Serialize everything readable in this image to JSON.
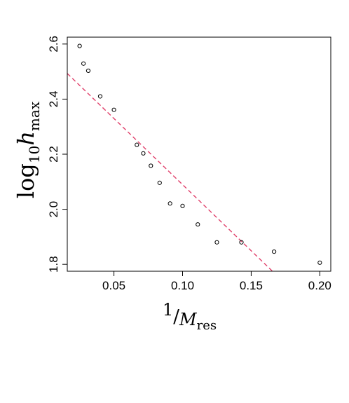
{
  "chart_data": {
    "type": "scatter",
    "xlabel": {
      "numerator": "1",
      "main": "M",
      "subscript": "res"
    },
    "ylabel": {
      "main": "log",
      "sub1": "10",
      "var": "h",
      "sub2": "max"
    },
    "xlim": [
      0.016,
      0.208
    ],
    "ylim": [
      1.775,
      2.625
    ],
    "x_ticks": [
      0.05,
      0.1,
      0.15,
      0.2
    ],
    "x_tick_labels": [
      "0.05",
      "0.10",
      "0.15",
      "0.20"
    ],
    "y_ticks": [
      1.8,
      2.0,
      2.2,
      2.4,
      2.6
    ],
    "y_tick_labels": [
      "1.8",
      "2.0",
      "2.2",
      "2.4",
      "2.6"
    ],
    "points": [
      {
        "x": 0.025,
        "y": 2.593
      },
      {
        "x": 0.0278,
        "y": 2.529
      },
      {
        "x": 0.0313,
        "y": 2.503
      },
      {
        "x": 0.04,
        "y": 2.41
      },
      {
        "x": 0.05,
        "y": 2.361
      },
      {
        "x": 0.0667,
        "y": 2.234
      },
      {
        "x": 0.0714,
        "y": 2.203
      },
      {
        "x": 0.0769,
        "y": 2.158
      },
      {
        "x": 0.0833,
        "y": 2.096
      },
      {
        "x": 0.0909,
        "y": 2.021
      },
      {
        "x": 0.1,
        "y": 2.012
      },
      {
        "x": 0.1111,
        "y": 1.945
      },
      {
        "x": 0.125,
        "y": 1.88
      },
      {
        "x": 0.1429,
        "y": 1.88
      },
      {
        "x": 0.1667,
        "y": 1.846
      },
      {
        "x": 0.2,
        "y": 1.806
      }
    ],
    "fit_line": {
      "x": [
        0.016,
        0.1655
      ],
      "y": [
        2.493,
        1.775
      ],
      "color": "#e0416b",
      "style": "dashed"
    },
    "point_color": "#000000",
    "grid": false
  }
}
